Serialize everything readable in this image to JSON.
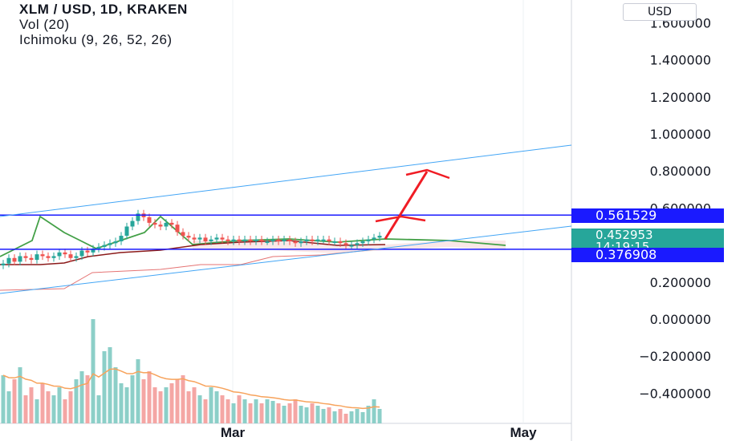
{
  "legend": {
    "symbol_line": "XLM / USD, 1D, KRAKEN",
    "vol_line": "Vol (20)",
    "ichimoku_line": "Ichimoku (9, 26, 52, 26)"
  },
  "currency_label": "USD",
  "price_tags": {
    "resistance": "0.561529",
    "current_price": "0.452953",
    "countdown": "14:19:15",
    "support": "0.376908"
  },
  "colors": {
    "resistance": "#1a1aff",
    "support": "#1a1aff",
    "current": "#26a69a",
    "up": "#26a69a",
    "down": "#ef5350",
    "trendline": "#42a5f5",
    "arrow": "#f01c24"
  },
  "chart_data": {
    "type": "candlestick",
    "price_axis_ticks": [
      "1.600000",
      "1.400000",
      "1.200000",
      "1.000000",
      "0.800000",
      "0.600000",
      "0.200000",
      "0.000000",
      "−0.200000",
      "−0.400000"
    ],
    "time_axis_ticks": [
      "Mar",
      "May"
    ],
    "ylim": [
      -0.47,
      1.75
    ],
    "horizontal_levels": [
      0.561529,
      0.376908
    ],
    "last_price": 0.452953,
    "closes": [
      0.3,
      0.33,
      0.31,
      0.34,
      0.33,
      0.32,
      0.35,
      0.34,
      0.33,
      0.34,
      0.36,
      0.35,
      0.33,
      0.34,
      0.37,
      0.36,
      0.38,
      0.39,
      0.4,
      0.41,
      0.42,
      0.45,
      0.5,
      0.53,
      0.57,
      0.55,
      0.52,
      0.51,
      0.5,
      0.52,
      0.51,
      0.47,
      0.45,
      0.44,
      0.43,
      0.44,
      0.42,
      0.43,
      0.44,
      0.43,
      0.42,
      0.43,
      0.42,
      0.43,
      0.42,
      0.43,
      0.42,
      0.42,
      0.43,
      0.42,
      0.43,
      0.42,
      0.41,
      0.42,
      0.43,
      0.42,
      0.43,
      0.43,
      0.42,
      0.42,
      0.41,
      0.4,
      0.4,
      0.41,
      0.42,
      0.43,
      0.44,
      0.45
    ]
  }
}
